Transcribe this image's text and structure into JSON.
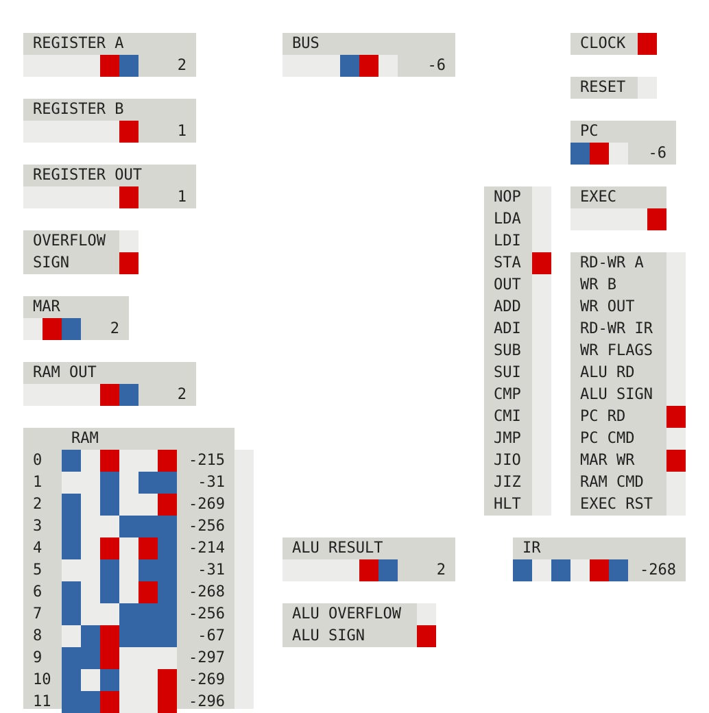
{
  "colors": {
    "panel": "#d6d7d1",
    "off": "#ececea",
    "red": "#d40000",
    "blue": "#3465a4"
  },
  "register_a": {
    "label": "REGISTER A",
    "bits": [
      0,
      0,
      0,
      0,
      1,
      2
    ],
    "value": "2"
  },
  "register_b": {
    "label": "REGISTER B",
    "bits": [
      0,
      0,
      0,
      0,
      0,
      1
    ],
    "value": "1"
  },
  "register_out": {
    "label": "REGISTER OUT",
    "bits": [
      0,
      0,
      0,
      0,
      0,
      1
    ],
    "value": "1"
  },
  "flags": {
    "overflow_label": "OVERFLOW",
    "overflow": 0,
    "sign_label": "SIGN",
    "sign": 1
  },
  "mar": {
    "label": "MAR",
    "bits": [
      0,
      1,
      2
    ],
    "value": "2"
  },
  "ram_out": {
    "label": "RAM OUT",
    "bits": [
      0,
      0,
      0,
      0,
      1,
      2
    ],
    "value": "2"
  },
  "bus": {
    "label": "BUS",
    "bits": [
      0,
      0,
      0,
      2,
      1,
      0
    ],
    "value": "-6"
  },
  "clock": {
    "label": "CLOCK",
    "state": 1
  },
  "reset": {
    "label": "RESET",
    "state": 0
  },
  "pc": {
    "label": "PC",
    "bits": [
      2,
      1,
      0
    ],
    "value": "-6"
  },
  "exec": {
    "label": "EXEC",
    "bits": [
      0,
      0,
      0,
      0,
      1
    ]
  },
  "instructions": {
    "names": [
      "NOP",
      "LDA",
      "LDI",
      "STA",
      "OUT",
      "ADD",
      "ADI",
      "SUB",
      "SUI",
      "CMP",
      "CMI",
      "JMP",
      "JIO",
      "JIZ",
      "HLT"
    ],
    "states": [
      0,
      0,
      0,
      1,
      0,
      0,
      0,
      0,
      0,
      0,
      0,
      0,
      0,
      0,
      0
    ]
  },
  "control_signals": {
    "names": [
      "RD-WR A",
      "WR B",
      "WR OUT",
      "RD-WR IR",
      "WR FLAGS",
      "ALU RD",
      "ALU SIGN",
      "PC RD",
      "PC CMD",
      "MAR WR",
      "RAM CMD",
      "EXEC RST"
    ],
    "states": [
      0,
      0,
      0,
      0,
      0,
      0,
      0,
      1,
      0,
      1,
      0,
      0
    ]
  },
  "alu_result": {
    "label": "ALU RESULT",
    "bits": [
      0,
      0,
      0,
      0,
      1,
      2
    ],
    "value": "2"
  },
  "alu_flags": {
    "overflow_label": "ALU OVERFLOW",
    "overflow": 0,
    "sign_label": "ALU SIGN",
    "sign": 1
  },
  "ir": {
    "label": "IR",
    "bits": [
      2,
      0,
      2,
      0,
      1,
      2
    ],
    "value": "-268"
  },
  "ram": {
    "label": "RAM",
    "rows": [
      {
        "addr": "0",
        "bits": [
          2,
          0,
          1,
          0,
          0,
          1
        ],
        "value": "-215"
      },
      {
        "addr": "1",
        "bits": [
          0,
          0,
          2,
          0,
          2,
          2
        ],
        "value": "-31"
      },
      {
        "addr": "2",
        "bits": [
          2,
          0,
          2,
          0,
          0,
          1
        ],
        "value": "-269"
      },
      {
        "addr": "3",
        "bits": [
          2,
          0,
          0,
          2,
          2,
          2
        ],
        "value": "-256"
      },
      {
        "addr": "4",
        "bits": [
          2,
          0,
          1,
          0,
          1,
          2
        ],
        "value": "-214"
      },
      {
        "addr": "5",
        "bits": [
          0,
          0,
          2,
          0,
          2,
          2
        ],
        "value": "-31"
      },
      {
        "addr": "6",
        "bits": [
          2,
          0,
          2,
          0,
          1,
          2
        ],
        "value": "-268"
      },
      {
        "addr": "7",
        "bits": [
          2,
          0,
          0,
          2,
          2,
          2
        ],
        "value": "-256"
      },
      {
        "addr": "8",
        "bits": [
          0,
          2,
          1,
          2,
          2,
          2
        ],
        "value": "-67"
      },
      {
        "addr": "9",
        "bits": [
          2,
          2,
          1,
          0,
          0,
          0
        ],
        "value": "-297"
      },
      {
        "addr": "10",
        "bits": [
          2,
          0,
          2,
          0,
          0,
          1
        ],
        "value": "-269"
      },
      {
        "addr": "11",
        "bits": [
          2,
          2,
          1,
          0,
          0,
          1
        ],
        "value": "-296"
      }
    ]
  }
}
